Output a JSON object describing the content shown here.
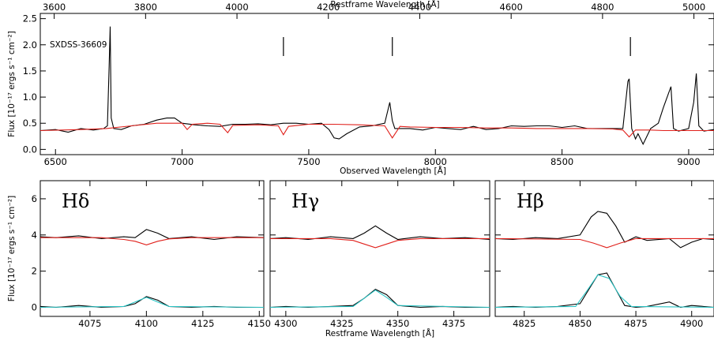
{
  "chart_data": [
    {
      "type": "line",
      "object_label": "SXDSS-36609",
      "xlabel": "Observed Wavelength [Å]",
      "xlabel_top": "Restframe Wavelength [Å]",
      "ylabel": "Flux [10⁻¹⁷ ergs s⁻¹ cm⁻²]",
      "xlim": [
        6440,
        9100
      ],
      "ylim": [
        -0.1,
        2.6
      ],
      "xticks": [
        6500,
        7000,
        7500,
        8000,
        8500,
        9000
      ],
      "yticks": [
        0.0,
        0.5,
        1.0,
        1.5,
        2.0,
        2.5
      ],
      "top_xticks": [
        3600,
        3800,
        4000,
        4200,
        4400,
        4600,
        4800,
        5000
      ],
      "line_markers": [
        7400,
        7830,
        8770
      ],
      "series": [
        {
          "color": "#000000",
          "x": [
            6440,
            6500,
            6550,
            6600,
            6650,
            6690,
            6705,
            6712,
            6716,
            6720,
            6730,
            6760,
            6800,
            6850,
            6900,
            6940,
            6970,
            7000,
            7050,
            7100,
            7150,
            7200,
            7250,
            7300,
            7350,
            7400,
            7450,
            7500,
            7550,
            7580,
            7600,
            7620,
            7650,
            7700,
            7750,
            7800,
            7820,
            7830,
            7840,
            7860,
            7900,
            7950,
            8000,
            8050,
            8100,
            8150,
            8200,
            8250,
            8300,
            8350,
            8400,
            8450,
            8500,
            8550,
            8600,
            8650,
            8700,
            8740,
            8760,
            8765,
            8775,
            8790,
            8800,
            8820,
            8850,
            8880,
            8900,
            8930,
            8940,
            8960,
            9000,
            9020,
            9030,
            9040,
            9060,
            9100
          ],
          "values": [
            0.36,
            0.38,
            0.33,
            0.4,
            0.37,
            0.4,
            0.45,
            1.6,
            2.35,
            0.6,
            0.4,
            0.38,
            0.45,
            0.48,
            0.56,
            0.6,
            0.6,
            0.5,
            0.47,
            0.45,
            0.44,
            0.48,
            0.48,
            0.49,
            0.47,
            0.5,
            0.5,
            0.48,
            0.5,
            0.38,
            0.22,
            0.2,
            0.3,
            0.43,
            0.45,
            0.5,
            0.9,
            0.55,
            0.4,
            0.4,
            0.4,
            0.37,
            0.42,
            0.4,
            0.38,
            0.44,
            0.38,
            0.4,
            0.45,
            0.44,
            0.45,
            0.45,
            0.42,
            0.45,
            0.4,
            0.4,
            0.4,
            0.4,
            1.3,
            1.35,
            0.4,
            0.2,
            0.3,
            0.1,
            0.4,
            0.5,
            0.8,
            1.2,
            0.4,
            0.35,
            0.4,
            0.9,
            1.45,
            0.45,
            0.35,
            0.38
          ]
        },
        {
          "color": "#e0201b",
          "x": [
            6440,
            6600,
            6700,
            6800,
            6900,
            7000,
            7020,
            7040,
            7100,
            7150,
            7180,
            7200,
            7300,
            7380,
            7400,
            7420,
            7500,
            7600,
            7700,
            7800,
            7830,
            7860,
            7900,
            8000,
            8100,
            8200,
            8300,
            8400,
            8500,
            8600,
            8700,
            8740,
            8765,
            8790,
            8850,
            8900,
            9000,
            9100
          ],
          "values": [
            0.36,
            0.38,
            0.4,
            0.45,
            0.5,
            0.5,
            0.38,
            0.48,
            0.5,
            0.48,
            0.32,
            0.46,
            0.47,
            0.45,
            0.28,
            0.44,
            0.48,
            0.48,
            0.47,
            0.45,
            0.22,
            0.44,
            0.43,
            0.42,
            0.42,
            0.41,
            0.41,
            0.4,
            0.4,
            0.4,
            0.39,
            0.37,
            0.24,
            0.37,
            0.37,
            0.36,
            0.36,
            0.36
          ]
        }
      ]
    },
    {
      "type": "line",
      "panel_label": "Hδ",
      "xlabel": "",
      "ylabel": "Flux [10⁻¹⁷ ergs s⁻¹ cm⁻²]",
      "xlim": [
        4053,
        4152
      ],
      "ylim": [
        -0.5,
        7.0
      ],
      "xticks": [
        4075,
        4100,
        4125,
        4150
      ],
      "yticks": [
        0,
        2,
        4,
        6
      ],
      "series": [
        {
          "color": "#000000",
          "x": [
            4053,
            4060,
            4070,
            4080,
            4090,
            4095,
            4100,
            4105,
            4110,
            4120,
            4130,
            4140,
            4152
          ],
          "values": [
            3.9,
            3.85,
            3.95,
            3.8,
            3.9,
            3.85,
            4.3,
            4.1,
            3.8,
            3.9,
            3.75,
            3.9,
            3.85
          ]
        },
        {
          "color": "#e0201b",
          "x": [
            4053,
            4080,
            4090,
            4095,
            4100,
            4105,
            4110,
            4120,
            4152
          ],
          "values": [
            3.85,
            3.85,
            3.75,
            3.65,
            3.45,
            3.65,
            3.78,
            3.85,
            3.85
          ]
        },
        {
          "color": "#000000",
          "x": [
            4053,
            4060,
            4070,
            4080,
            4090,
            4095,
            4100,
            4105,
            4110,
            4120,
            4130,
            4140,
            4152
          ],
          "values": [
            0.05,
            0.0,
            0.1,
            0.0,
            0.05,
            0.2,
            0.6,
            0.4,
            0.05,
            0.0,
            0.05,
            0.0,
            0.0
          ]
        },
        {
          "color": "#29c4c4",
          "x": [
            4053,
            4090,
            4095,
            4100,
            4105,
            4110,
            4152
          ],
          "values": [
            0.0,
            0.05,
            0.3,
            0.55,
            0.3,
            0.05,
            0.0
          ]
        }
      ]
    },
    {
      "type": "line",
      "panel_label": "Hγ",
      "xlabel": "Restframe Wavelength [Å]",
      "ylabel": "",
      "xlim": [
        4293,
        4391
      ],
      "ylim": [
        -0.5,
        7.0
      ],
      "xticks": [
        4300,
        4325,
        4350,
        4375
      ],
      "yticks": [
        0,
        2,
        4,
        6
      ],
      "series": [
        {
          "color": "#000000",
          "x": [
            4293,
            4300,
            4310,
            4320,
            4330,
            4335,
            4340,
            4345,
            4350,
            4360,
            4370,
            4380,
            4391
          ],
          "values": [
            3.8,
            3.85,
            3.75,
            3.9,
            3.8,
            4.1,
            4.5,
            4.1,
            3.75,
            3.9,
            3.8,
            3.85,
            3.75
          ]
        },
        {
          "color": "#e0201b",
          "x": [
            4293,
            4320,
            4330,
            4335,
            4340,
            4345,
            4350,
            4360,
            4391
          ],
          "values": [
            3.8,
            3.8,
            3.7,
            3.5,
            3.3,
            3.5,
            3.7,
            3.8,
            3.8
          ]
        },
        {
          "color": "#000000",
          "x": [
            4293,
            4300,
            4310,
            4320,
            4330,
            4335,
            4340,
            4345,
            4350,
            4360,
            4370,
            4380,
            4391
          ],
          "values": [
            0.0,
            0.05,
            0.0,
            0.05,
            0.1,
            0.5,
            1.0,
            0.7,
            0.1,
            0.0,
            0.05,
            0.0,
            0.0
          ]
        },
        {
          "color": "#29c4c4",
          "x": [
            4293,
            4330,
            4335,
            4340,
            4345,
            4350,
            4391
          ],
          "values": [
            0.0,
            0.05,
            0.5,
            0.95,
            0.55,
            0.1,
            0.0
          ]
        }
      ]
    },
    {
      "type": "line",
      "panel_label": "Hβ",
      "xlabel": "",
      "ylabel": "",
      "xlim": [
        4812,
        4910
      ],
      "ylim": [
        -0.5,
        7.0
      ],
      "xticks": [
        4825,
        4850,
        4875,
        4900
      ],
      "yticks": [
        0,
        2,
        4,
        6
      ],
      "series": [
        {
          "color": "#000000",
          "x": [
            4812,
            4820,
            4830,
            4840,
            4850,
            4855,
            4858,
            4862,
            4866,
            4870,
            4875,
            4880,
            4890,
            4895,
            4900,
            4905,
            4910
          ],
          "values": [
            3.8,
            3.75,
            3.85,
            3.8,
            4.0,
            5.0,
            5.3,
            5.2,
            4.5,
            3.6,
            3.9,
            3.7,
            3.8,
            3.3,
            3.6,
            3.8,
            3.75
          ]
        },
        {
          "color": "#e0201b",
          "x": [
            4812,
            4850,
            4856,
            4862,
            4868,
            4875,
            4910
          ],
          "values": [
            3.8,
            3.75,
            3.55,
            3.3,
            3.55,
            3.8,
            3.8
          ]
        },
        {
          "color": "#000000",
          "x": [
            4812,
            4820,
            4830,
            4840,
            4850,
            4855,
            4858,
            4862,
            4866,
            4870,
            4875,
            4880,
            4890,
            4895,
            4900,
            4910
          ],
          "values": [
            0.0,
            0.05,
            0.0,
            0.05,
            0.2,
            1.2,
            1.8,
            1.9,
            1.0,
            0.1,
            0.0,
            0.05,
            0.3,
            0.0,
            0.1,
            0.0
          ]
        },
        {
          "color": "#29c4c4",
          "x": [
            4812,
            4848,
            4853,
            4858,
            4863,
            4868,
            4873,
            4910
          ],
          "values": [
            0.0,
            0.05,
            0.9,
            1.8,
            1.6,
            0.6,
            0.05,
            0.0
          ]
        }
      ]
    }
  ]
}
